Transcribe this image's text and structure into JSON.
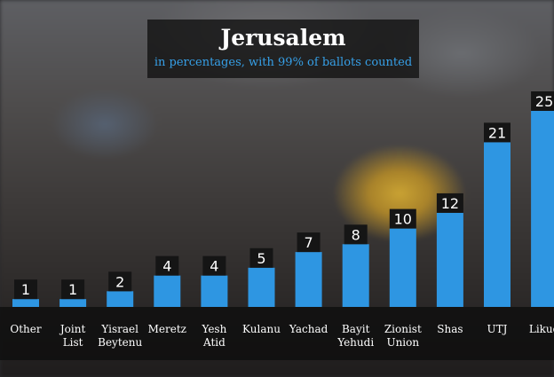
{
  "header": {
    "title": "Jerusalem",
    "subtitle": "in percentages, with 99% of ballots counted"
  },
  "colors": {
    "bar": "#2e96e2",
    "value_label_bg": "#151515",
    "value_label_text": "#ffffff",
    "axis_label_text": "#ffffff",
    "subtitle": "#36a0e8"
  },
  "chart_data": {
    "type": "bar",
    "title": "Jerusalem",
    "subtitle": "in percentages, with 99% of ballots counted",
    "categories": [
      [
        "Other"
      ],
      [
        "Joint",
        "List"
      ],
      [
        "Yisrael",
        "Beytenu"
      ],
      [
        "Meretz"
      ],
      [
        "Yesh",
        "Atid"
      ],
      [
        "Kulanu"
      ],
      [
        "Yachad"
      ],
      [
        "Bayit",
        "Yehudi"
      ],
      [
        "Zionist",
        "Union"
      ],
      [
        "Shas"
      ],
      [
        "UTJ"
      ],
      [
        "Likud"
      ]
    ],
    "values": [
      1,
      1,
      2,
      4,
      4,
      5,
      7,
      8,
      10,
      12,
      21,
      25
    ],
    "data_labels": [
      "1",
      "1",
      "2",
      "4",
      "4",
      "5",
      "7",
      "8",
      "10",
      "12",
      "21",
      "25"
    ],
    "ylim": [
      0,
      25
    ],
    "grid": false,
    "legend": "none"
  }
}
